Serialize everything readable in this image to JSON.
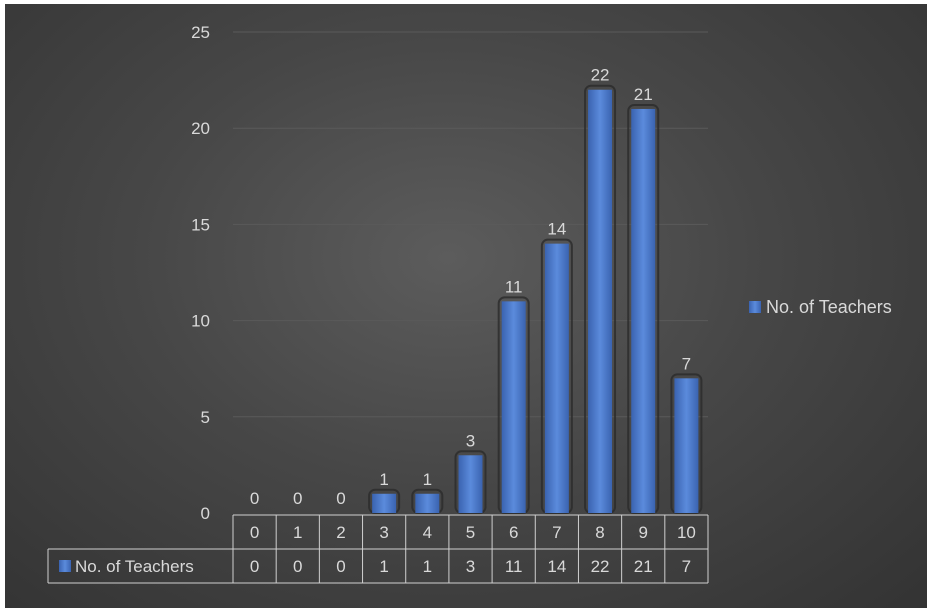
{
  "chart_data": {
    "type": "bar",
    "categories": [
      "0",
      "1",
      "2",
      "3",
      "4",
      "5",
      "6",
      "7",
      "8",
      "9",
      "10"
    ],
    "series": [
      {
        "name": "No. of Teachers",
        "values": [
          0,
          0,
          0,
          1,
          1,
          3,
          11,
          14,
          22,
          21,
          7
        ]
      }
    ],
    "ylim": [
      0,
      25
    ],
    "yticks": [
      0,
      5,
      10,
      15,
      20,
      25
    ],
    "grid": true,
    "legend_position": "right",
    "data_table": true,
    "title": "",
    "xlabel": "",
    "ylabel": "",
    "colors": {
      "bar": "#4472c4",
      "background": "#404040",
      "text": "#d9d9d9",
      "grid": "#5a5a5a"
    }
  }
}
